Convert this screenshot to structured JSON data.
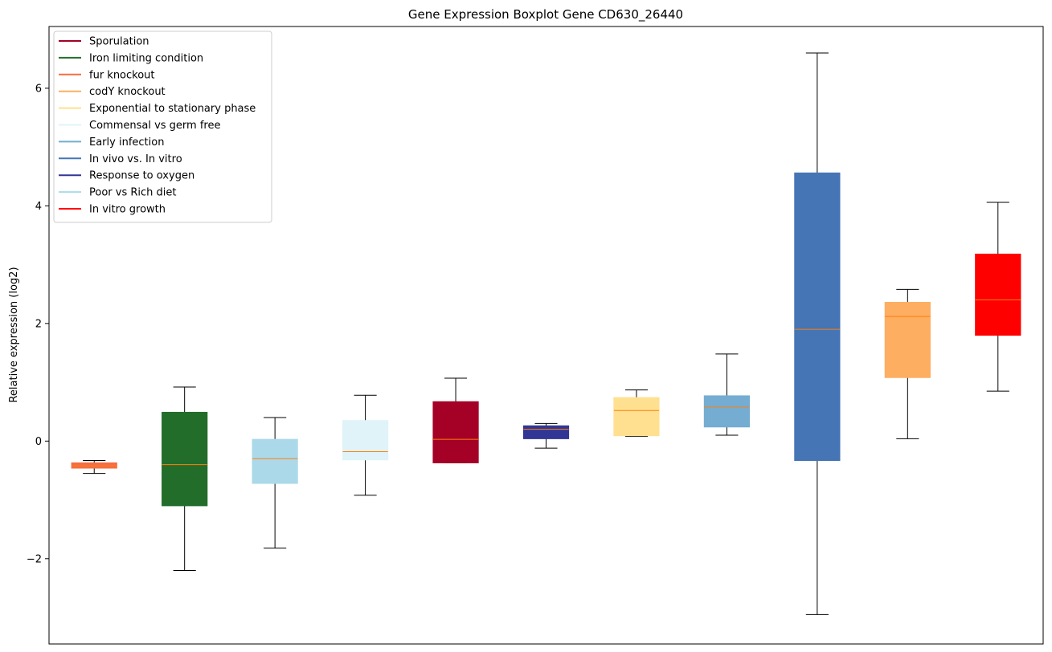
{
  "chart_data": {
    "type": "boxplot",
    "title": "Gene Expression Boxplot Gene CD630_26440",
    "xlabel": "",
    "ylabel": "Relative expression (log2)",
    "ylim": [
      -3.45,
      7.05
    ],
    "yticks": [
      -2,
      0,
      2,
      4,
      6
    ],
    "ytick_labels": [
      "−2",
      "0",
      "2",
      "4",
      "6"
    ],
    "grid": false,
    "legend_position": "top-left",
    "legend": [
      {
        "label": "Sporulation",
        "color": "#a50026"
      },
      {
        "label": "Iron limiting condition",
        "color": "#236d2b"
      },
      {
        "label": "fur knockout",
        "color": "#f46d43"
      },
      {
        "label": "codY knockout",
        "color": "#fdae61"
      },
      {
        "label": "Exponential to stationary phase",
        "color": "#fee090"
      },
      {
        "label": "Commensal vs germ free",
        "color": "#e0f3f8"
      },
      {
        "label": "Early infection",
        "color": "#74add1"
      },
      {
        "label": "In vivo vs. In vitro",
        "color": "#4575b4"
      },
      {
        "label": "Response to oxygen",
        "color": "#313695"
      },
      {
        "label": "Poor vs Rich diet",
        "color": "#abd9e9"
      },
      {
        "label": "In vitro growth",
        "color": "#ff0000"
      }
    ],
    "boxes": [
      {
        "group": "fur knockout",
        "color": "#f46d43",
        "whisker_low": -0.55,
        "q1": -0.46,
        "median": -0.42,
        "q3": -0.37,
        "whisker_high": -0.33
      },
      {
        "group": "Iron limiting condition",
        "color": "#236d2b",
        "whisker_low": -2.2,
        "q1": -1.1,
        "median": -0.4,
        "q3": 0.49,
        "whisker_high": 0.92
      },
      {
        "group": "Poor vs Rich diet",
        "color": "#abd9e9",
        "whisker_low": -1.82,
        "q1": -0.72,
        "median": -0.3,
        "q3": 0.03,
        "whisker_high": 0.4
      },
      {
        "group": "Commensal vs germ free",
        "color": "#e0f3f8",
        "whisker_low": -0.92,
        "q1": -0.32,
        "median": -0.18,
        "q3": 0.35,
        "whisker_high": 0.78
      },
      {
        "group": "Sporulation",
        "color": "#a50026",
        "whisker_low": -0.37,
        "q1": -0.37,
        "median": 0.03,
        "q3": 0.67,
        "whisker_high": 1.07
      },
      {
        "group": "Response to oxygen",
        "color": "#313695",
        "whisker_low": -0.12,
        "q1": 0.04,
        "median": 0.2,
        "q3": 0.26,
        "whisker_high": 0.3
      },
      {
        "group": "Exponential to stationary phase",
        "color": "#fee090",
        "whisker_low": 0.08,
        "q1": 0.09,
        "median": 0.52,
        "q3": 0.74,
        "whisker_high": 0.87
      },
      {
        "group": "Early infection",
        "color": "#74add1",
        "whisker_low": 0.1,
        "q1": 0.24,
        "median": 0.58,
        "q3": 0.77,
        "whisker_high": 1.48
      },
      {
        "group": "In vivo vs. In vitro",
        "color": "#4575b4",
        "whisker_low": -2.95,
        "q1": -0.33,
        "median": 1.9,
        "q3": 4.56,
        "whisker_high": 6.6
      },
      {
        "group": "codY knockout",
        "color": "#fdae61",
        "whisker_low": 0.04,
        "q1": 1.08,
        "median": 2.12,
        "q3": 2.36,
        "whisker_high": 2.58
      },
      {
        "group": "In vitro growth",
        "color": "#ff0000",
        "whisker_low": 0.85,
        "q1": 1.8,
        "median": 2.4,
        "q3": 3.18,
        "whisker_high": 4.06
      }
    ],
    "median_color": "#ff7f0e"
  }
}
